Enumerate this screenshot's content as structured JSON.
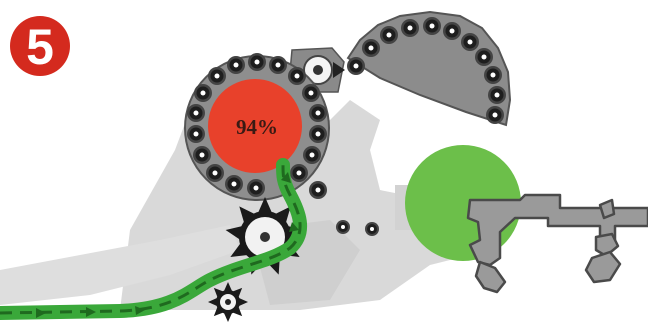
{
  "step": {
    "number": "5",
    "badge_color": "#d42a1e"
  },
  "pressure_roller": {
    "percent_label": "94%",
    "fill_color": "#e8412b"
  },
  "colors": {
    "crop_flow": "#3aa83a",
    "crop_flow_dash": "#2a7a2a",
    "net_roll": "#6cbf4a",
    "machine_gray": "#8a8a8a",
    "frame_gray": "#9a9a9a",
    "shadow_gray": "#d9d9d9",
    "roller_dark": "#2b2b2b"
  },
  "icons": {
    "star_wheel": "star-wheel-icon",
    "small_wheel": "small-star-wheel-icon"
  }
}
